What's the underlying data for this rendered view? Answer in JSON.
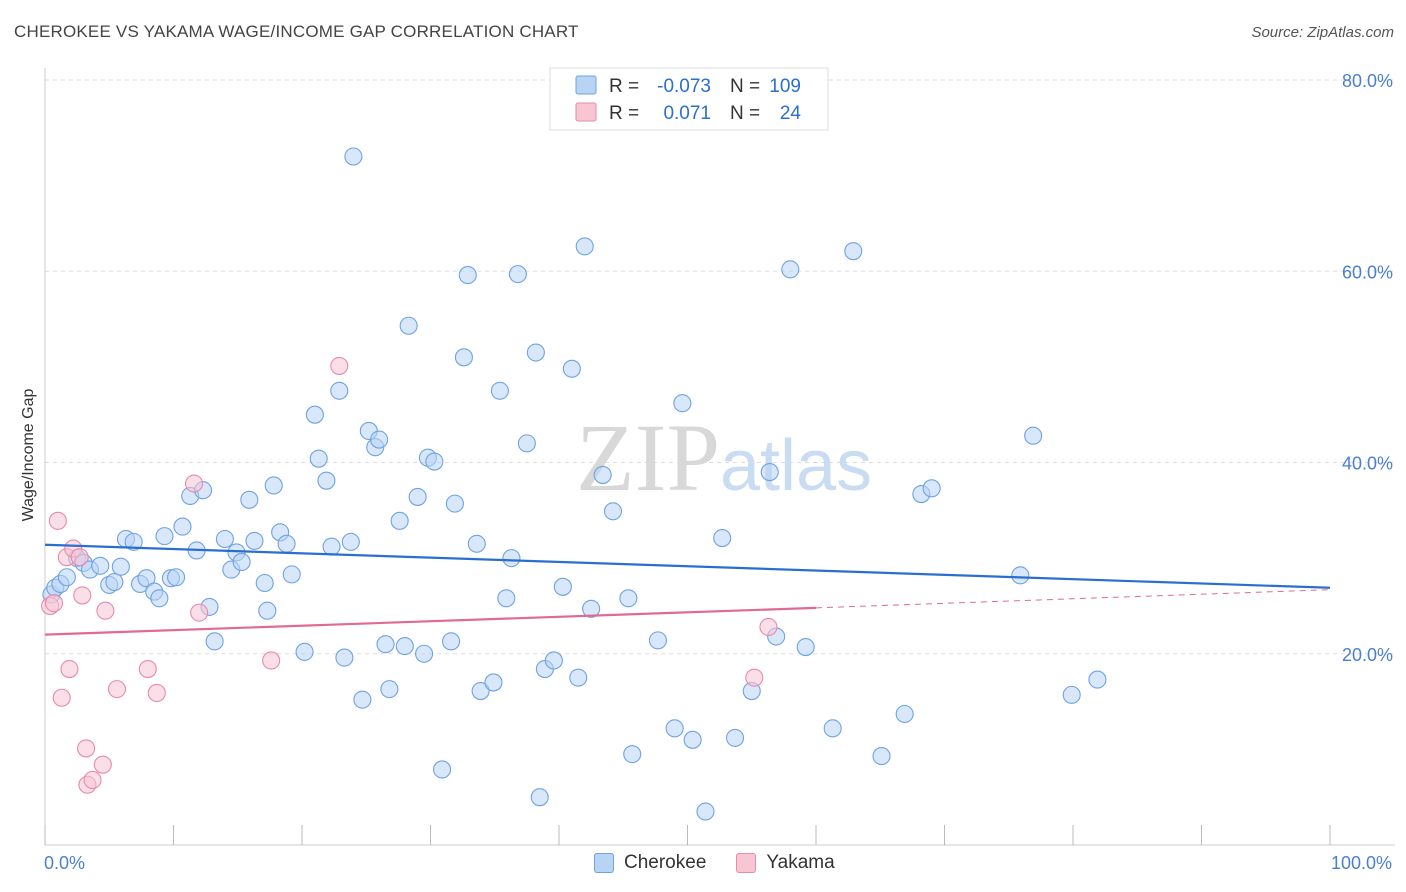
{
  "header": {
    "title": "CHEROKEE VS YAKAMA WAGE/INCOME GAP CORRELATION CHART",
    "source": "Source: ZipAtlas.com"
  },
  "watermark": {
    "zip": "ZIP",
    "atlas": "atlas"
  },
  "colors": {
    "cherokee_fill": "#b8d4f5",
    "cherokee_stroke": "#6fa3e0",
    "cherokee_line": "#2a6fcf",
    "yakama_fill": "#f8c5d5",
    "yakama_stroke": "#e88aaa",
    "yakama_line": "#e06a92",
    "axis_text": "#4a7fd0",
    "grid": "#dddddd"
  },
  "legend_box": {
    "rows": [
      {
        "r_label": "R =",
        "r_value": "-0.073",
        "n_label": "N =",
        "n_value": "109"
      },
      {
        "r_label": "R =",
        "r_value": "0.071",
        "n_label": "N =",
        "n_value": "24"
      }
    ]
  },
  "legend_bottom": {
    "cherokee": "Cherokee",
    "yakama": "Yakama"
  },
  "chart_data": {
    "type": "scatter",
    "xlabel": "",
    "ylabel": "Wage/Income Gap",
    "xlim": [
      0,
      100
    ],
    "ylim": [
      0,
      80
    ],
    "x_tick_labels": [
      "0.0%",
      "100.0%"
    ],
    "y_tick_labels": [
      "20.0%",
      "40.0%",
      "60.0%",
      "80.0%"
    ],
    "y_ticks": [
      20,
      40,
      60,
      80
    ],
    "series": [
      {
        "name": "Cherokee",
        "trend": {
          "x0": 0,
          "y0": 31.4,
          "x1": 100,
          "y1": 26.9
        },
        "points": [
          [
            0.5,
            26.2
          ],
          [
            0.8,
            26.9
          ],
          [
            1.2,
            27.3
          ],
          [
            1.7,
            28.0
          ],
          [
            2.5,
            30.0
          ],
          [
            3.0,
            29.5
          ],
          [
            3.5,
            28.8
          ],
          [
            4.3,
            29.2
          ],
          [
            5.0,
            27.2
          ],
          [
            5.4,
            27.5
          ],
          [
            5.9,
            29.1
          ],
          [
            6.3,
            32.0
          ],
          [
            6.9,
            31.7
          ],
          [
            7.4,
            27.3
          ],
          [
            7.9,
            27.9
          ],
          [
            8.5,
            26.5
          ],
          [
            8.9,
            25.8
          ],
          [
            9.3,
            32.3
          ],
          [
            9.8,
            27.9
          ],
          [
            10.2,
            28.0
          ],
          [
            10.7,
            33.3
          ],
          [
            11.3,
            36.5
          ],
          [
            11.8,
            30.8
          ],
          [
            12.3,
            37.1
          ],
          [
            12.8,
            24.9
          ],
          [
            13.2,
            21.3
          ],
          [
            14.0,
            32.0
          ],
          [
            14.5,
            28.8
          ],
          [
            14.9,
            30.6
          ],
          [
            15.3,
            29.6
          ],
          [
            15.9,
            36.1
          ],
          [
            16.3,
            31.8
          ],
          [
            17.1,
            27.4
          ],
          [
            17.3,
            24.5
          ],
          [
            17.8,
            37.6
          ],
          [
            18.3,
            32.7
          ],
          [
            18.8,
            31.5
          ],
          [
            19.2,
            28.3
          ],
          [
            20.2,
            20.2
          ],
          [
            21.0,
            45.0
          ],
          [
            21.3,
            40.4
          ],
          [
            21.9,
            38.1
          ],
          [
            22.3,
            31.2
          ],
          [
            22.9,
            47.5
          ],
          [
            23.3,
            19.6
          ],
          [
            23.8,
            31.7
          ],
          [
            24.0,
            72.0
          ],
          [
            24.7,
            15.2
          ],
          [
            25.2,
            43.3
          ],
          [
            25.7,
            41.6
          ],
          [
            26.0,
            42.4
          ],
          [
            26.5,
            21.0
          ],
          [
            26.8,
            16.3
          ],
          [
            27.6,
            33.9
          ],
          [
            28.0,
            20.8
          ],
          [
            28.3,
            54.3
          ],
          [
            29.0,
            36.4
          ],
          [
            29.5,
            20.0
          ],
          [
            29.8,
            40.5
          ],
          [
            30.3,
            40.1
          ],
          [
            30.9,
            7.9
          ],
          [
            31.6,
            21.3
          ],
          [
            31.9,
            35.7
          ],
          [
            32.6,
            51.0
          ],
          [
            32.9,
            59.6
          ],
          [
            33.6,
            31.5
          ],
          [
            33.9,
            16.1
          ],
          [
            34.9,
            17.0
          ],
          [
            35.4,
            47.5
          ],
          [
            35.9,
            25.8
          ],
          [
            36.3,
            30.0
          ],
          [
            36.8,
            59.7
          ],
          [
            37.5,
            42.0
          ],
          [
            38.2,
            51.5
          ],
          [
            38.5,
            5.0
          ],
          [
            38.9,
            18.4
          ],
          [
            39.6,
            19.3
          ],
          [
            40.3,
            27.0
          ],
          [
            41.0,
            49.8
          ],
          [
            41.5,
            17.5
          ],
          [
            42.0,
            62.6
          ],
          [
            42.5,
            24.7
          ],
          [
            43.4,
            38.7
          ],
          [
            44.2,
            34.9
          ],
          [
            45.4,
            25.8
          ],
          [
            45.7,
            9.5
          ],
          [
            47.7,
            21.4
          ],
          [
            49.0,
            12.2
          ],
          [
            49.6,
            46.2
          ],
          [
            50.4,
            11.0
          ],
          [
            51.4,
            3.5
          ],
          [
            52.7,
            32.1
          ],
          [
            53.7,
            11.2
          ],
          [
            55.0,
            16.1
          ],
          [
            56.4,
            39.0
          ],
          [
            56.9,
            21.8
          ],
          [
            58.0,
            60.2
          ],
          [
            59.2,
            20.7
          ],
          [
            61.3,
            12.2
          ],
          [
            62.9,
            62.1
          ],
          [
            65.1,
            9.3
          ],
          [
            66.9,
            13.7
          ],
          [
            68.2,
            36.7
          ],
          [
            69.0,
            37.3
          ],
          [
            75.9,
            28.2
          ],
          [
            76.9,
            42.8
          ],
          [
            79.9,
            15.7
          ],
          [
            81.9,
            17.3
          ]
        ]
      },
      {
        "name": "Yakama",
        "trend": {
          "x0": 0,
          "y0": 22.0,
          "x1": 60,
          "y1": 24.8,
          "dash_x1": 100,
          "dash_y1": 26.7
        },
        "points": [
          [
            0.4,
            25.0
          ],
          [
            0.7,
            25.3
          ],
          [
            1.0,
            33.9
          ],
          [
            1.3,
            15.4
          ],
          [
            1.7,
            30.1
          ],
          [
            1.9,
            18.4
          ],
          [
            2.2,
            31.0
          ],
          [
            2.7,
            30.1
          ],
          [
            2.9,
            26.1
          ],
          [
            3.2,
            10.1
          ],
          [
            3.3,
            6.3
          ],
          [
            3.7,
            6.8
          ],
          [
            4.5,
            8.4
          ],
          [
            4.7,
            24.5
          ],
          [
            5.6,
            16.3
          ],
          [
            8.0,
            18.4
          ],
          [
            8.7,
            15.9
          ],
          [
            11.6,
            37.8
          ],
          [
            12.0,
            24.3
          ],
          [
            17.6,
            19.3
          ],
          [
            22.9,
            50.1
          ],
          [
            55.2,
            17.5
          ],
          [
            56.3,
            22.8
          ]
        ]
      }
    ]
  }
}
